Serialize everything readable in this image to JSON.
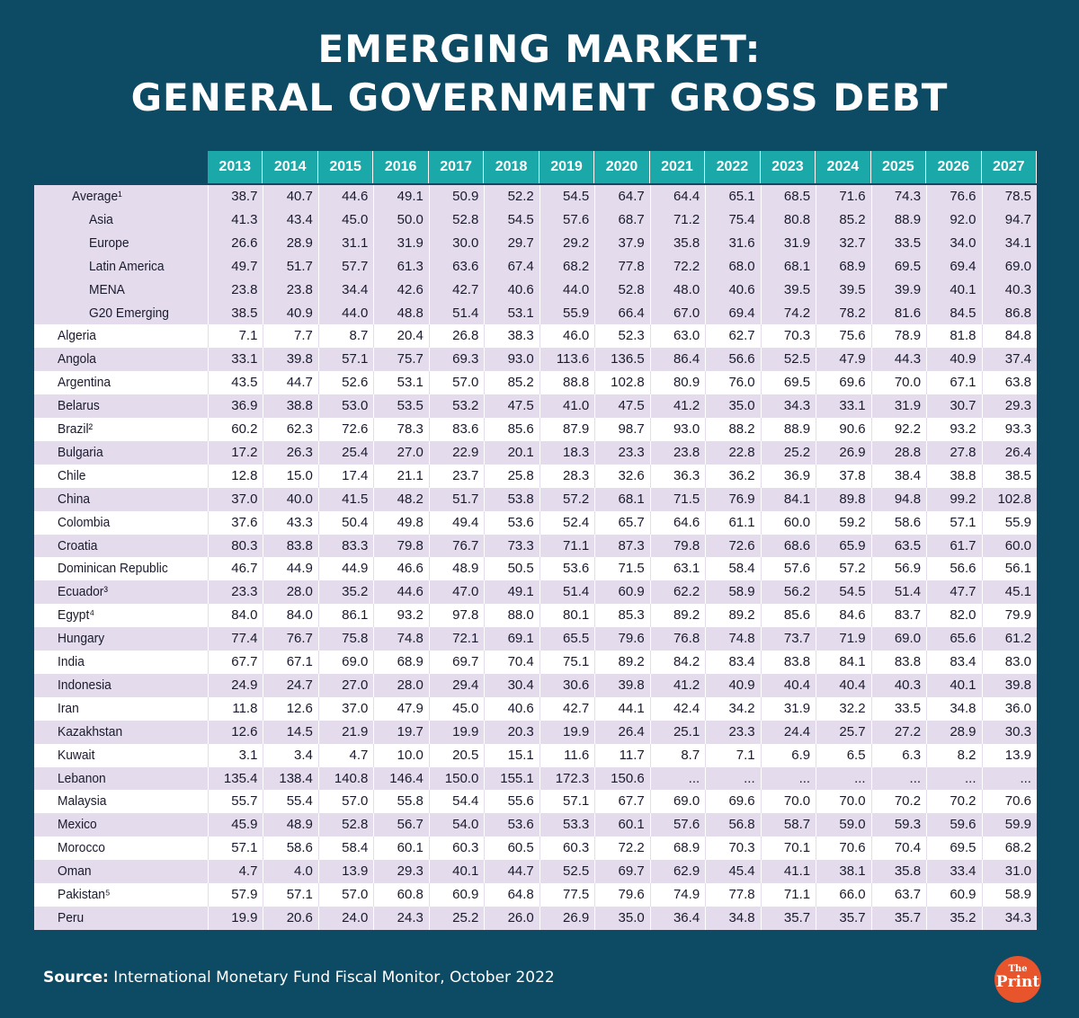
{
  "title": {
    "line1": "EMERGING MARKET:",
    "line2": "GENERAL GOVERNMENT GROSS DEBT"
  },
  "source": {
    "label": "Source:",
    "text": "International Monetary Fund Fiscal Monitor, October 2022"
  },
  "logo": {
    "top": "The",
    "bottom": "Print"
  },
  "chart_data": {
    "type": "table",
    "title": "EMERGING MARKET: GENERAL GOVERNMENT GROSS DEBT",
    "columns": [
      "2013",
      "2014",
      "2015",
      "2016",
      "2017",
      "2018",
      "2019",
      "2020",
      "2021",
      "2022",
      "2023",
      "2024",
      "2025",
      "2026",
      "2027"
    ],
    "rows": [
      {
        "label": "Average¹",
        "indent": 1,
        "values": [
          "38.7",
          "40.7",
          "44.6",
          "49.1",
          "50.9",
          "52.2",
          "54.5",
          "64.7",
          "64.4",
          "65.1",
          "68.5",
          "71.6",
          "74.3",
          "76.6",
          "78.5"
        ]
      },
      {
        "label": "Asia",
        "indent": 2,
        "values": [
          "41.3",
          "43.4",
          "45.0",
          "50.0",
          "52.8",
          "54.5",
          "57.6",
          "68.7",
          "71.2",
          "75.4",
          "80.8",
          "85.2",
          "88.9",
          "92.0",
          "94.7"
        ]
      },
      {
        "label": "Europe",
        "indent": 2,
        "values": [
          "26.6",
          "28.9",
          "31.1",
          "31.9",
          "30.0",
          "29.7",
          "29.2",
          "37.9",
          "35.8",
          "31.6",
          "31.9",
          "32.7",
          "33.5",
          "34.0",
          "34.1"
        ]
      },
      {
        "label": "Latin America",
        "indent": 2,
        "values": [
          "49.7",
          "51.7",
          "57.7",
          "61.3",
          "63.6",
          "67.4",
          "68.2",
          "77.8",
          "72.2",
          "68.0",
          "68.1",
          "68.9",
          "69.5",
          "69.4",
          "69.0"
        ]
      },
      {
        "label": "MENA",
        "indent": 2,
        "values": [
          "23.8",
          "23.8",
          "34.4",
          "42.6",
          "42.7",
          "40.6",
          "44.0",
          "52.8",
          "48.0",
          "40.6",
          "39.5",
          "39.5",
          "39.9",
          "40.1",
          "40.3"
        ]
      },
      {
        "label": "G20 Emerging",
        "indent": 2,
        "values": [
          "38.5",
          "40.9",
          "44.0",
          "48.8",
          "51.4",
          "53.1",
          "55.9",
          "66.4",
          "67.0",
          "69.4",
          "74.2",
          "78.2",
          "81.6",
          "84.5",
          "86.8"
        ]
      },
      {
        "label": "Algeria",
        "indent": 0,
        "values": [
          "7.1",
          "7.7",
          "8.7",
          "20.4",
          "26.8",
          "38.3",
          "46.0",
          "52.3",
          "63.0",
          "62.7",
          "70.3",
          "75.6",
          "78.9",
          "81.8",
          "84.8"
        ]
      },
      {
        "label": "Angola",
        "indent": 0,
        "values": [
          "33.1",
          "39.8",
          "57.1",
          "75.7",
          "69.3",
          "93.0",
          "113.6",
          "136.5",
          "86.4",
          "56.6",
          "52.5",
          "47.9",
          "44.3",
          "40.9",
          "37.4"
        ]
      },
      {
        "label": "Argentina",
        "indent": 0,
        "values": [
          "43.5",
          "44.7",
          "52.6",
          "53.1",
          "57.0",
          "85.2",
          "88.8",
          "102.8",
          "80.9",
          "76.0",
          "69.5",
          "69.6",
          "70.0",
          "67.1",
          "63.8"
        ]
      },
      {
        "label": "Belarus",
        "indent": 0,
        "values": [
          "36.9",
          "38.8",
          "53.0",
          "53.5",
          "53.2",
          "47.5",
          "41.0",
          "47.5",
          "41.2",
          "35.0",
          "34.3",
          "33.1",
          "31.9",
          "30.7",
          "29.3"
        ]
      },
      {
        "label": "Brazil²",
        "indent": 0,
        "values": [
          "60.2",
          "62.3",
          "72.6",
          "78.3",
          "83.6",
          "85.6",
          "87.9",
          "98.7",
          "93.0",
          "88.2",
          "88.9",
          "90.6",
          "92.2",
          "93.2",
          "93.3"
        ]
      },
      {
        "label": "Bulgaria",
        "indent": 0,
        "values": [
          "17.2",
          "26.3",
          "25.4",
          "27.0",
          "22.9",
          "20.1",
          "18.3",
          "23.3",
          "23.8",
          "22.8",
          "25.2",
          "26.9",
          "28.8",
          "27.8",
          "26.4"
        ]
      },
      {
        "label": "Chile",
        "indent": 0,
        "values": [
          "12.8",
          "15.0",
          "17.4",
          "21.1",
          "23.7",
          "25.8",
          "28.3",
          "32.6",
          "36.3",
          "36.2",
          "36.9",
          "37.8",
          "38.4",
          "38.8",
          "38.5"
        ]
      },
      {
        "label": "China",
        "indent": 0,
        "values": [
          "37.0",
          "40.0",
          "41.5",
          "48.2",
          "51.7",
          "53.8",
          "57.2",
          "68.1",
          "71.5",
          "76.9",
          "84.1",
          "89.8",
          "94.8",
          "99.2",
          "102.8"
        ]
      },
      {
        "label": "Colombia",
        "indent": 0,
        "values": [
          "37.6",
          "43.3",
          "50.4",
          "49.8",
          "49.4",
          "53.6",
          "52.4",
          "65.7",
          "64.6",
          "61.1",
          "60.0",
          "59.2",
          "58.6",
          "57.1",
          "55.9"
        ]
      },
      {
        "label": "Croatia",
        "indent": 0,
        "values": [
          "80.3",
          "83.8",
          "83.3",
          "79.8",
          "76.7",
          "73.3",
          "71.1",
          "87.3",
          "79.8",
          "72.6",
          "68.6",
          "65.9",
          "63.5",
          "61.7",
          "60.0"
        ]
      },
      {
        "label": "Dominican Republic",
        "indent": 0,
        "values": [
          "46.7",
          "44.9",
          "44.9",
          "46.6",
          "48.9",
          "50.5",
          "53.6",
          "71.5",
          "63.1",
          "58.4",
          "57.6",
          "57.2",
          "56.9",
          "56.6",
          "56.1"
        ]
      },
      {
        "label": "Ecuador³",
        "indent": 0,
        "values": [
          "23.3",
          "28.0",
          "35.2",
          "44.6",
          "47.0",
          "49.1",
          "51.4",
          "60.9",
          "62.2",
          "58.9",
          "56.2",
          "54.5",
          "51.4",
          "47.7",
          "45.1"
        ]
      },
      {
        "label": "Egypt⁴",
        "indent": 0,
        "values": [
          "84.0",
          "84.0",
          "86.1",
          "93.2",
          "97.8",
          "88.0",
          "80.1",
          "85.3",
          "89.2",
          "89.2",
          "85.6",
          "84.6",
          "83.7",
          "82.0",
          "79.9"
        ]
      },
      {
        "label": "Hungary",
        "indent": 0,
        "values": [
          "77.4",
          "76.7",
          "75.8",
          "74.8",
          "72.1",
          "69.1",
          "65.5",
          "79.6",
          "76.8",
          "74.8",
          "73.7",
          "71.9",
          "69.0",
          "65.6",
          "61.2"
        ]
      },
      {
        "label": "India",
        "indent": 0,
        "values": [
          "67.7",
          "67.1",
          "69.0",
          "68.9",
          "69.7",
          "70.4",
          "75.1",
          "89.2",
          "84.2",
          "83.4",
          "83.8",
          "84.1",
          "83.8",
          "83.4",
          "83.0"
        ]
      },
      {
        "label": "Indonesia",
        "indent": 0,
        "values": [
          "24.9",
          "24.7",
          "27.0",
          "28.0",
          "29.4",
          "30.4",
          "30.6",
          "39.8",
          "41.2",
          "40.9",
          "40.4",
          "40.4",
          "40.3",
          "40.1",
          "39.8"
        ]
      },
      {
        "label": "Iran",
        "indent": 0,
        "values": [
          "11.8",
          "12.6",
          "37.0",
          "47.9",
          "45.0",
          "40.6",
          "42.7",
          "44.1",
          "42.4",
          "34.2",
          "31.9",
          "32.2",
          "33.5",
          "34.8",
          "36.0"
        ]
      },
      {
        "label": "Kazakhstan",
        "indent": 0,
        "values": [
          "12.6",
          "14.5",
          "21.9",
          "19.7",
          "19.9",
          "20.3",
          "19.9",
          "26.4",
          "25.1",
          "23.3",
          "24.4",
          "25.7",
          "27.2",
          "28.9",
          "30.3"
        ]
      },
      {
        "label": "Kuwait",
        "indent": 0,
        "values": [
          "3.1",
          "3.4",
          "4.7",
          "10.0",
          "20.5",
          "15.1",
          "11.6",
          "11.7",
          "8.7",
          "7.1",
          "6.9",
          "6.5",
          "6.3",
          "8.2",
          "13.9"
        ]
      },
      {
        "label": "Lebanon",
        "indent": 0,
        "values": [
          "135.4",
          "138.4",
          "140.8",
          "146.4",
          "150.0",
          "155.1",
          "172.3",
          "150.6",
          "...",
          "...",
          "...",
          "...",
          "...",
          "...",
          "..."
        ]
      },
      {
        "label": "Malaysia",
        "indent": 0,
        "values": [
          "55.7",
          "55.4",
          "57.0",
          "55.8",
          "54.4",
          "55.6",
          "57.1",
          "67.7",
          "69.0",
          "69.6",
          "70.0",
          "70.0",
          "70.2",
          "70.2",
          "70.6"
        ]
      },
      {
        "label": "Mexico",
        "indent": 0,
        "values": [
          "45.9",
          "48.9",
          "52.8",
          "56.7",
          "54.0",
          "53.6",
          "53.3",
          "60.1",
          "57.6",
          "56.8",
          "58.7",
          "59.0",
          "59.3",
          "59.6",
          "59.9"
        ]
      },
      {
        "label": "Morocco",
        "indent": 0,
        "values": [
          "57.1",
          "58.6",
          "58.4",
          "60.1",
          "60.3",
          "60.5",
          "60.3",
          "72.2",
          "68.9",
          "70.3",
          "70.1",
          "70.6",
          "70.4",
          "69.5",
          "68.2"
        ]
      },
      {
        "label": "Oman",
        "indent": 0,
        "values": [
          "4.7",
          "4.0",
          "13.9",
          "29.3",
          "40.1",
          "44.7",
          "52.5",
          "69.7",
          "62.9",
          "45.4",
          "41.1",
          "38.1",
          "35.8",
          "33.4",
          "31.0"
        ]
      },
      {
        "label": "Pakistan⁵",
        "indent": 0,
        "values": [
          "57.9",
          "57.1",
          "57.0",
          "60.8",
          "60.9",
          "64.8",
          "77.5",
          "79.6",
          "74.9",
          "77.8",
          "71.1",
          "66.0",
          "63.7",
          "60.9",
          "58.9"
        ]
      },
      {
        "label": "Peru",
        "indent": 0,
        "values": [
          "19.9",
          "20.6",
          "24.0",
          "24.3",
          "25.2",
          "26.0",
          "26.9",
          "35.0",
          "36.4",
          "34.8",
          "35.7",
          "35.7",
          "35.7",
          "35.2",
          "34.3"
        ]
      }
    ]
  }
}
